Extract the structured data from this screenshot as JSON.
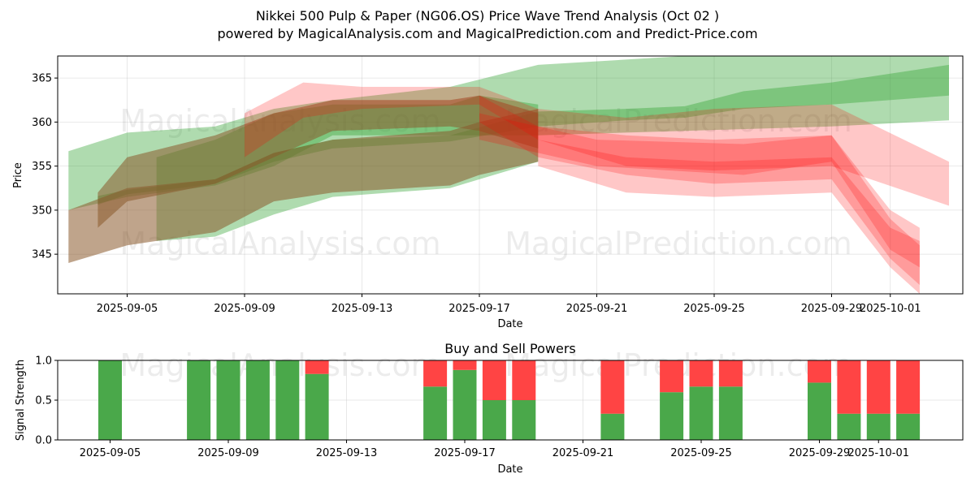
{
  "chart_data": [
    {
      "type": "area",
      "title": "Nikkei 500 Pulp & Paper (NG06.OS) Price Wave Trend Analysis (Oct 02 )",
      "subtitle": "powered by MagicalAnalysis.com and MagicalPrediction.com and Predict-Price.com",
      "xlabel": "Date",
      "ylabel": "Price",
      "ylim": [
        340.5,
        367.5
      ],
      "yticks": [
        345,
        350,
        355,
        360,
        365
      ],
      "xticks": [
        "2025-09-05",
        "2025-09-09",
        "2025-09-13",
        "2025-09-17",
        "2025-09-21",
        "2025-09-25",
        "2025-09-29",
        "2025-10-01"
      ],
      "grid": true,
      "watermarks": [
        "MagicalAnalysis.com",
        "MagicalPrediction.com"
      ],
      "colors": {
        "buy": "#2ca02c",
        "sell": "#ff0000",
        "mixed": "#8b5a2b",
        "bar_buy": "#4aa84a",
        "bar_sell": "#ff4444"
      },
      "series": [
        {
          "name": "green-wide-band",
          "color": "#2ca02c",
          "x": [
            "2025-09-03",
            "2025-09-05",
            "2025-09-08",
            "2025-09-10",
            "2025-09-12",
            "2025-09-16",
            "2025-09-19",
            "2025-09-24",
            "2025-09-29",
            "2025-10-03"
          ],
          "upper": [
            356.7,
            358.8,
            359.5,
            361.5,
            362.5,
            364.0,
            366.5,
            367.5,
            367.5,
            367.5
          ],
          "lower": [
            350.0,
            351.5,
            352.8,
            355.0,
            358.5,
            358.5,
            358.5,
            359.0,
            359.5,
            360.2
          ]
        },
        {
          "name": "green-narrow-band",
          "color": "#2ca02c",
          "x": [
            "2025-09-04",
            "2025-09-05",
            "2025-09-08",
            "2025-09-10",
            "2025-09-12",
            "2025-09-16",
            "2025-09-19",
            "2025-09-22",
            "2025-09-24",
            "2025-09-26",
            "2025-09-29",
            "2025-10-03"
          ],
          "upper": [
            351.6,
            352.3,
            353.5,
            356.5,
            358.0,
            358.5,
            361.2,
            361.5,
            361.8,
            363.5,
            364.5,
            366.5
          ],
          "lower": [
            350.6,
            351.8,
            353.0,
            355.5,
            357.0,
            357.8,
            359.5,
            360.2,
            360.5,
            361.5,
            362.0,
            363.0
          ]
        },
        {
          "name": "green-lower-band",
          "color": "#2ca02c",
          "x": [
            "2025-09-06",
            "2025-09-08",
            "2025-09-10",
            "2025-09-12",
            "2025-09-16",
            "2025-09-17",
            "2025-09-19"
          ],
          "upper": [
            356.0,
            358.0,
            361.0,
            362.0,
            362.0,
            363.0,
            362.0
          ],
          "lower": [
            346.5,
            347.0,
            349.5,
            351.5,
            352.5,
            353.5,
            355.5
          ]
        },
        {
          "name": "mixed-main-band",
          "color": "#8b5a2b",
          "x": [
            "2025-09-03",
            "2025-09-05",
            "2025-09-08",
            "2025-09-10",
            "2025-09-12",
            "2025-09-16",
            "2025-09-17",
            "2025-09-19"
          ],
          "upper": [
            350.0,
            352.5,
            353.5,
            356.5,
            358.0,
            359.0,
            360.0,
            361.5
          ],
          "lower": [
            344.0,
            346.0,
            347.5,
            351.0,
            352.0,
            352.8,
            354.0,
            355.5
          ]
        },
        {
          "name": "mixed-upper-band",
          "color": "#8b5a2b",
          "x": [
            "2025-09-04",
            "2025-09-05",
            "2025-09-08",
            "2025-09-10",
            "2025-09-12",
            "2025-09-16",
            "2025-09-17",
            "2025-09-19"
          ],
          "upper": [
            352.0,
            356.0,
            358.5,
            361.0,
            362.5,
            362.5,
            363.0,
            361.0
          ],
          "lower": [
            348.0,
            351.0,
            353.0,
            356.0,
            359.0,
            359.5,
            359.0,
            357.0
          ]
        },
        {
          "name": "red-upper-band",
          "color": "#ff0000",
          "x": [
            "2025-09-09",
            "2025-09-11",
            "2025-09-13",
            "2025-09-17",
            "2025-09-19",
            "2025-09-22",
            "2025-09-25",
            "2025-09-29",
            "2025-10-03"
          ],
          "upper": [
            361.0,
            364.5,
            364.0,
            364.0,
            361.5,
            360.5,
            361.5,
            362.0,
            355.5
          ],
          "lower": [
            356.0,
            360.5,
            361.5,
            362.0,
            358.0,
            355.0,
            354.5,
            355.0,
            350.5
          ]
        },
        {
          "name": "red-main-band",
          "color": "#ff0000",
          "x": [
            "2025-09-17",
            "2025-09-19",
            "2025-09-22",
            "2025-09-25",
            "2025-09-29",
            "2025-10-01",
            "2025-10-02"
          ],
          "upper": [
            363.0,
            359.5,
            358.5,
            358.0,
            358.5,
            349.0,
            346.0
          ],
          "lower": [
            360.0,
            356.0,
            354.0,
            353.0,
            353.5,
            344.5,
            341.5
          ]
        },
        {
          "name": "red-lower-band",
          "color": "#ff0000",
          "x": [
            "2025-09-19",
            "2025-09-22",
            "2025-09-25",
            "2025-09-29",
            "2025-10-01",
            "2025-10-02"
          ],
          "upper": [
            358.0,
            356.0,
            355.5,
            356.0,
            348.0,
            346.5
          ],
          "lower": [
            355.0,
            352.0,
            351.5,
            352.0,
            343.5,
            340.5
          ]
        },
        {
          "name": "red-late-band",
          "color": "#ff0000",
          "x": [
            "2025-09-17",
            "2025-09-21",
            "2025-09-26",
            "2025-09-29",
            "2025-10-01",
            "2025-10-02"
          ],
          "upper": [
            361.0,
            358.0,
            357.5,
            358.5,
            350.0,
            348.0
          ],
          "lower": [
            358.0,
            355.0,
            354.0,
            355.5,
            345.5,
            343.5
          ]
        }
      ]
    },
    {
      "type": "bar",
      "title": "Buy and Sell Powers",
      "xlabel": "Date",
      "ylabel": "Signal Strength",
      "ylim": [
        0,
        1
      ],
      "yticks": [
        "0.0",
        "0.5",
        "1.0"
      ],
      "xticks": [
        "2025-09-05",
        "2025-09-09",
        "2025-09-13",
        "2025-09-17",
        "2025-09-21",
        "2025-09-25",
        "2025-09-29",
        "2025-10-01"
      ],
      "categories": [
        "2025-09-05",
        "2025-09-08",
        "2025-09-09",
        "2025-09-10",
        "2025-09-11",
        "2025-09-12",
        "2025-09-16",
        "2025-09-17",
        "2025-09-18",
        "2025-09-19",
        "2025-09-22",
        "2025-09-24",
        "2025-09-25",
        "2025-09-26",
        "2025-09-29",
        "2025-09-30",
        "2025-10-01",
        "2025-10-02"
      ],
      "series": [
        {
          "name": "Buy",
          "color": "#4aa84a",
          "values": [
            1.0,
            1.0,
            1.0,
            1.0,
            1.0,
            0.83,
            0.67,
            0.88,
            0.5,
            0.5,
            0.33,
            0.6,
            0.67,
            0.67,
            0.72,
            0.33,
            0.33,
            0.33
          ]
        },
        {
          "name": "Sell",
          "color": "#ff4444",
          "values": [
            0.0,
            0.0,
            0.0,
            0.0,
            0.0,
            0.17,
            0.33,
            0.12,
            0.5,
            0.5,
            0.67,
            0.4,
            0.33,
            0.33,
            0.28,
            0.67,
            0.67,
            0.67
          ]
        }
      ]
    }
  ]
}
